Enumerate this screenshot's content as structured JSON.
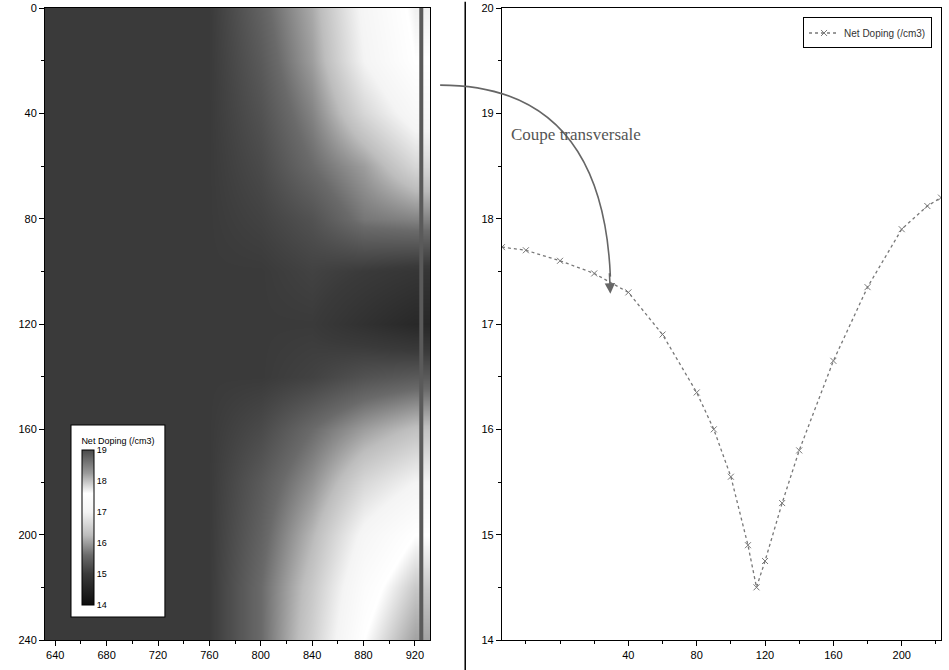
{
  "chart_data": [
    {
      "type": "heatmap",
      "x": [
        640,
        680,
        720,
        760,
        800,
        840,
        880,
        920
      ],
      "y": [
        0,
        20,
        40,
        60,
        80,
        100,
        120,
        140,
        160,
        180,
        200,
        220,
        240
      ],
      "z": [
        [
          15.0,
          15.0,
          15.0,
          15.0,
          15.5,
          16.1,
          17.1,
          17.7
        ],
        [
          15.0,
          15.0,
          15.0,
          15.0,
          15.4,
          16.0,
          17.0,
          17.6
        ],
        [
          15.0,
          15.0,
          15.0,
          15.0,
          15.3,
          15.8,
          16.6,
          17.2
        ],
        [
          15.0,
          15.0,
          15.0,
          15.0,
          15.2,
          15.6,
          16.0,
          16.6
        ],
        [
          15.0,
          15.0,
          15.0,
          15.0,
          15.1,
          15.3,
          15.7,
          15.8
        ],
        [
          15.0,
          15.0,
          15.0,
          15.0,
          15.0,
          15.1,
          15.0,
          14.9
        ],
        [
          15.0,
          15.0,
          15.0,
          15.0,
          15.0,
          15.0,
          14.8,
          14.6
        ],
        [
          15.0,
          15.0,
          15.0,
          15.0,
          15.0,
          15.1,
          15.3,
          15.4
        ],
        [
          15.0,
          15.0,
          15.0,
          15.0,
          15.2,
          15.6,
          16.0,
          16.3
        ],
        [
          15.0,
          15.0,
          15.0,
          15.0,
          15.4,
          15.9,
          16.6,
          17.0
        ],
        [
          15.0,
          15.0,
          15.0,
          15.0,
          15.5,
          16.2,
          17.1,
          17.6
        ],
        [
          15.0,
          15.0,
          15.0,
          15.0,
          15.6,
          16.4,
          17.4,
          17.95
        ],
        [
          15.0,
          15.0,
          15.0,
          15.0,
          15.6,
          16.5,
          17.6,
          18.2
        ]
      ],
      "xlim": [
        632,
        932
      ],
      "ylim": [
        240,
        0
      ],
      "xticks": [
        640,
        680,
        720,
        760,
        800,
        840,
        880,
        920
      ],
      "yticks": [
        0,
        40,
        80,
        120,
        160,
        200,
        240
      ],
      "colorbar": {
        "title": "Net Doping (/cm3)",
        "range": [
          14,
          19
        ],
        "ticks": [
          14,
          15,
          16,
          17,
          18,
          19
        ]
      },
      "series": [
        {
          "type": "line",
          "x": [
            925,
            925
          ],
          "y": [
            0,
            240
          ],
          "color": "#5a5a5a"
        }
      ]
    },
    {
      "type": "line",
      "x": [
        -34,
        -20,
        0,
        20,
        40,
        60,
        80,
        90,
        100,
        110,
        115,
        120,
        130,
        140,
        160,
        180,
        200,
        215,
        223
      ],
      "series": [
        {
          "name": "Net Doping (/cm3)",
          "color": "#777777",
          "marker": "x",
          "line_style": "dot",
          "values": [
            17.73,
            17.7,
            17.6,
            17.48,
            17.3,
            16.9,
            16.35,
            16.0,
            15.55,
            14.9,
            14.5,
            14.75,
            15.3,
            15.8,
            16.65,
            17.35,
            17.9,
            18.12,
            18.2
          ]
        }
      ],
      "xlim": [
        -34,
        223
      ],
      "ylim": [
        14,
        20
      ],
      "xticks": [
        40,
        80,
        120,
        160,
        200
      ],
      "yticks": [
        14,
        15,
        16,
        17,
        18,
        19,
        20
      ],
      "legend": "top right",
      "annotations": [
        {
          "text": "Coupe transversale",
          "x": -30,
          "y": 18.8
        }
      ]
    }
  ]
}
